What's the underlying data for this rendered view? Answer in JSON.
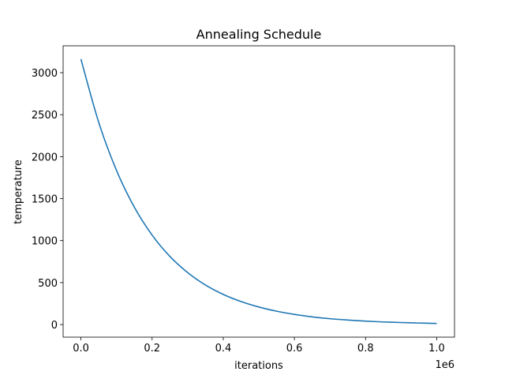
{
  "chart_data": {
    "type": "line",
    "title": "Annealing Schedule",
    "xlabel": "iterations",
    "ylabel": "temperature",
    "x_offset_label": "1e6",
    "xlim": [
      -0.05,
      1.05
    ],
    "ylim": [
      -150,
      3320
    ],
    "x_ticks": [
      0.0,
      0.2,
      0.4,
      0.6,
      0.8,
      1.0
    ],
    "x_tick_labels": [
      "0.0",
      "0.2",
      "0.4",
      "0.6",
      "0.8",
      "1.0"
    ],
    "y_ticks": [
      0,
      500,
      1000,
      1500,
      2000,
      2500,
      3000
    ],
    "y_tick_labels": [
      "0",
      "500",
      "1000",
      "1500",
      "2000",
      "2500",
      "3000"
    ],
    "grid": false,
    "series": [
      {
        "name": "temperature",
        "color": "#1f77b4",
        "x": [
          0.0,
          0.05,
          0.1,
          0.15,
          0.2,
          0.25,
          0.3,
          0.35,
          0.4,
          0.45,
          0.5,
          0.55,
          0.6,
          0.65,
          0.7,
          0.75,
          0.8,
          0.85,
          0.9,
          0.95,
          1.0
        ],
        "y": [
          3162,
          2409,
          1836,
          1399,
          1066,
          812,
          619,
          471,
          359,
          274,
          209,
          159,
          121,
          92,
          70,
          54,
          41,
          31,
          24,
          18,
          13
        ]
      }
    ]
  }
}
